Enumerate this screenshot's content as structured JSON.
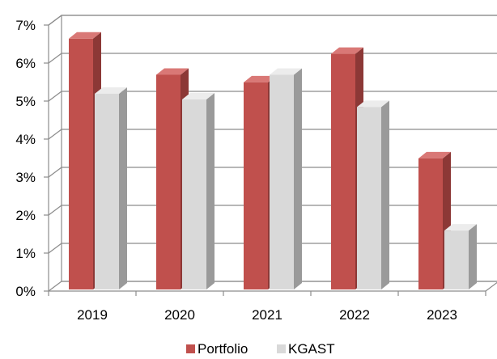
{
  "chart_data": {
    "type": "bar",
    "style": "3d-clustered-column",
    "categories": [
      "2019",
      "2020",
      "2021",
      "2022",
      "2023"
    ],
    "series": [
      {
        "name": "Portfolio",
        "values": [
          6.6,
          5.65,
          5.45,
          6.2,
          3.45
        ]
      },
      {
        "name": "KGAST",
        "values": [
          5.15,
          5.0,
          5.65,
          4.8,
          1.55
        ]
      }
    ],
    "yticks": [
      "0%",
      "1%",
      "2%",
      "3%",
      "4%",
      "5%",
      "6%",
      "7%"
    ],
    "ylim": [
      0,
      7
    ],
    "ytick_step": 1,
    "grid": true,
    "legend_position": "bottom",
    "colors": {
      "Portfolio": {
        "front": "#c0504d",
        "side": "#8c3836",
        "top": "#d97876"
      },
      "KGAST": {
        "front": "#d9d9d9",
        "side": "#9a9a9a",
        "top": "#ececec"
      },
      "grid": "#8c8c8c",
      "axis": "#8c8c8c"
    }
  }
}
